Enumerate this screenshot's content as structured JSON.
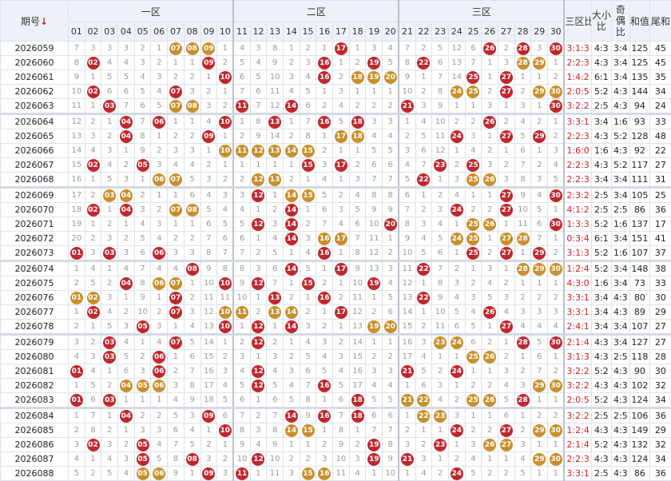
{
  "header": {
    "issue": "期号",
    "sort_icon": "↓",
    "zones": [
      "一区",
      "二区",
      "三区"
    ],
    "numbers": [
      "01",
      "02",
      "03",
      "04",
      "05",
      "06",
      "07",
      "08",
      "09",
      "10",
      "11",
      "12",
      "13",
      "14",
      "15",
      "16",
      "17",
      "18",
      "19",
      "20",
      "21",
      "22",
      "23",
      "24",
      "25",
      "26",
      "27",
      "28",
      "29",
      "30"
    ],
    "stats": [
      "三区比",
      "大小比",
      "奇偶比",
      "和值",
      "尾和"
    ]
  },
  "style": {
    "ball_color": "#c0272d",
    "consecutive_color": "#c8902c",
    "miss_color": "#9a9a9a",
    "ratio_color": "#d0202a",
    "header_bg": "#eef2f8"
  },
  "rows": [
    {
      "issue": "2026059",
      "cells": [
        "7",
        "3",
        "3",
        "3",
        "2",
        "1",
        "07",
        "08",
        "09",
        "1",
        "4",
        "3",
        "8",
        "1",
        "2",
        "1",
        "17",
        "1",
        "3",
        "4",
        "7",
        "2",
        "5",
        "12",
        "6",
        "26",
        "2",
        "28",
        "3",
        "30"
      ],
      "zone_ratio": "3:1:3",
      "big_small": "4:3",
      "odd_even": "3:4",
      "sum": 125,
      "tail_sum": 45
    },
    {
      "issue": "2026060",
      "cells": [
        "8",
        "02",
        "4",
        "4",
        "3",
        "2",
        "1",
        "1",
        "09",
        "2",
        "5",
        "4",
        "9",
        "2",
        "3",
        "16",
        "1",
        "2",
        "19",
        "5",
        "8",
        "22",
        "6",
        "13",
        "7",
        "1",
        "3",
        "28",
        "29",
        "1"
      ],
      "zone_ratio": "2:2:3",
      "big_small": "4:3",
      "odd_even": "3:4",
      "sum": 125,
      "tail_sum": 45
    },
    {
      "issue": "2026061",
      "cells": [
        "9",
        "1",
        "5",
        "5",
        "4",
        "3",
        "2",
        "2",
        "1",
        "10",
        "6",
        "5",
        "10",
        "3",
        "4",
        "16",
        "2",
        "18",
        "19",
        "20",
        "9",
        "1",
        "7",
        "14",
        "25",
        "1",
        "27",
        "1",
        "1",
        "2"
      ],
      "zone_ratio": "1:4:2",
      "big_small": "6:1",
      "odd_even": "3:4",
      "sum": 135,
      "tail_sum": 35
    },
    {
      "issue": "2026062",
      "cells": [
        "10",
        "02",
        "6",
        "6",
        "5",
        "4",
        "07",
        "3",
        "2",
        "1",
        "7",
        "6",
        "11",
        "4",
        "5",
        "1",
        "3",
        "1",
        "1",
        "1",
        "10",
        "2",
        "8",
        "24",
        "25",
        "2",
        "27",
        "2",
        "29",
        "30"
      ],
      "zone_ratio": "2:0:5",
      "big_small": "5:2",
      "odd_even": "4:3",
      "sum": 144,
      "tail_sum": 34
    },
    {
      "issue": "2026063",
      "cells": [
        "11",
        "1",
        "03",
        "7",
        "6",
        "5",
        "07",
        "08",
        "3",
        "2",
        "11",
        "7",
        "12",
        "14",
        "6",
        "2",
        "4",
        "2",
        "2",
        "2",
        "21",
        "3",
        "9",
        "1",
        "1",
        "3",
        "1",
        "3",
        "1",
        "30"
      ],
      "zone_ratio": "3:2:2",
      "big_small": "2:5",
      "odd_even": "4:3",
      "sum": 94,
      "tail_sum": 24
    },
    {
      "issue": "2026064",
      "cells": [
        "12",
        "2",
        "1",
        "04",
        "7",
        "06",
        "1",
        "1",
        "4",
        "10",
        "1",
        "8",
        "13",
        "1",
        "7",
        "16",
        "5",
        "18",
        "3",
        "3",
        "1",
        "4",
        "10",
        "2",
        "2",
        "26",
        "2",
        "4",
        "2",
        "1"
      ],
      "zone_ratio": "3:3:1",
      "big_small": "3:4",
      "odd_even": "1:6",
      "sum": 93,
      "tail_sum": 33
    },
    {
      "issue": "2026065",
      "cells": [
        "13",
        "3",
        "2",
        "04",
        "8",
        "1",
        "2",
        "2",
        "09",
        "1",
        "2",
        "9",
        "14",
        "2",
        "8",
        "1",
        "17",
        "18",
        "4",
        "4",
        "2",
        "5",
        "11",
        "24",
        "3",
        "1",
        "27",
        "5",
        "29",
        "2"
      ],
      "zone_ratio": "2:2:3",
      "big_small": "4:3",
      "odd_even": "5:2",
      "sum": 128,
      "tail_sum": 48
    },
    {
      "issue": "2026066",
      "cells": [
        "14",
        "4",
        "3",
        "1",
        "9",
        "2",
        "3",
        "3",
        "1",
        "10",
        "11",
        "12",
        "13",
        "14",
        "15",
        "2",
        "1",
        "1",
        "5",
        "5",
        "3",
        "6",
        "12",
        "1",
        "4",
        "2",
        "1",
        "6",
        "1",
        "3"
      ],
      "zone_ratio": "1:6:0",
      "big_small": "1:6",
      "odd_even": "4:3",
      "sum": 92,
      "tail_sum": 22
    },
    {
      "issue": "2026067",
      "cells": [
        "15",
        "02",
        "4",
        "2",
        "05",
        "3",
        "4",
        "4",
        "2",
        "1",
        "1",
        "1",
        "1",
        "1",
        "15",
        "3",
        "17",
        "2",
        "6",
        "6",
        "4",
        "7",
        "23",
        "2",
        "25",
        "3",
        "2",
        "7",
        "2",
        "4"
      ],
      "zone_ratio": "2:2:3",
      "big_small": "4:3",
      "odd_even": "5:2",
      "sum": 117,
      "tail_sum": 27
    },
    {
      "issue": "2026068",
      "cells": [
        "16",
        "1",
        "5",
        "3",
        "1",
        "06",
        "07",
        "5",
        "3",
        "2",
        "2",
        "12",
        "13",
        "2",
        "1",
        "4",
        "1",
        "3",
        "7",
        "7",
        "5",
        "22",
        "1",
        "3",
        "25",
        "26",
        "3",
        "8",
        "3",
        "5"
      ],
      "zone_ratio": "2:2:3",
      "big_small": "3:4",
      "odd_even": "3:4",
      "sum": 111,
      "tail_sum": 31
    },
    {
      "issue": "2026069",
      "cells": [
        "17",
        "2",
        "03",
        "04",
        "2",
        "1",
        "1",
        "6",
        "4",
        "3",
        "3",
        "12",
        "1",
        "14",
        "15",
        "5",
        "2",
        "4",
        "8",
        "8",
        "6",
        "1",
        "2",
        "4",
        "1",
        "1",
        "27",
        "9",
        "4",
        "30"
      ],
      "zone_ratio": "2:3:2",
      "big_small": "2:5",
      "odd_even": "3:4",
      "sum": 105,
      "tail_sum": 25
    },
    {
      "issue": "2026070",
      "cells": [
        "18",
        "02",
        "1",
        "04",
        "3",
        "2",
        "07",
        "08",
        "5",
        "4",
        "4",
        "1",
        "2",
        "14",
        "1",
        "6",
        "3",
        "5",
        "9",
        "9",
        "7",
        "2",
        "3",
        "24",
        "2",
        "2",
        "27",
        "10",
        "5",
        "1"
      ],
      "zone_ratio": "4:1:2",
      "big_small": "2:5",
      "odd_even": "2:5",
      "sum": 86,
      "tail_sum": 36
    },
    {
      "issue": "2026071",
      "cells": [
        "19",
        "1",
        "2",
        "1",
        "4",
        "3",
        "1",
        "1",
        "6",
        "5",
        "5",
        "12",
        "3",
        "14",
        "2",
        "7",
        "4",
        "6",
        "10",
        "20",
        "8",
        "3",
        "4",
        "1",
        "25",
        "26",
        "1",
        "11",
        "6",
        "30"
      ],
      "zone_ratio": "1:3:3",
      "big_small": "5:2",
      "odd_even": "1:6",
      "sum": 137,
      "tail_sum": 17
    },
    {
      "issue": "2026072",
      "cells": [
        "20",
        "2",
        "3",
        "2",
        "5",
        "4",
        "2",
        "2",
        "7",
        "6",
        "6",
        "1",
        "4",
        "14",
        "3",
        "16",
        "17",
        "7",
        "11",
        "1",
        "9",
        "4",
        "5",
        "24",
        "25",
        "1",
        "27",
        "28",
        "7",
        "1"
      ],
      "zone_ratio": "0:3:4",
      "big_small": "6:1",
      "odd_even": "3:4",
      "sum": 151,
      "tail_sum": 41
    },
    {
      "issue": "2026073",
      "cells": [
        "01",
        "3",
        "03",
        "3",
        "6",
        "06",
        "3",
        "3",
        "8",
        "7",
        "7",
        "2",
        "5",
        "1",
        "4",
        "16",
        "1",
        "8",
        "12",
        "2",
        "10",
        "5",
        "6",
        "1",
        "25",
        "2",
        "27",
        "1",
        "29",
        "2"
      ],
      "zone_ratio": "3:1:3",
      "big_small": "5:2",
      "odd_even": "1:6",
      "sum": 107,
      "tail_sum": 37
    },
    {
      "issue": "2026074",
      "cells": [
        "1",
        "4",
        "1",
        "4",
        "7",
        "4",
        "4",
        "08",
        "9",
        "8",
        "8",
        "3",
        "6",
        "14",
        "5",
        "1",
        "17",
        "9",
        "13",
        "3",
        "11",
        "22",
        "7",
        "2",
        "1",
        "3",
        "1",
        "28",
        "29",
        "30"
      ],
      "zone_ratio": "1:2:4",
      "big_small": "5:2",
      "odd_even": "3:4",
      "sum": 148,
      "tail_sum": 38
    },
    {
      "issue": "2026075",
      "cells": [
        "2",
        "5",
        "2",
        "04",
        "8",
        "06",
        "07",
        "1",
        "10",
        "10",
        "9",
        "12",
        "7",
        "1",
        "15",
        "2",
        "1",
        "10",
        "19",
        "4",
        "12",
        "1",
        "8",
        "3",
        "2",
        "4",
        "2",
        "1",
        "1",
        "1"
      ],
      "zone_ratio": "4:3:0",
      "big_small": "1:6",
      "odd_even": "3:4",
      "sum": 73,
      "tail_sum": 33
    },
    {
      "issue": "2026076",
      "cells": [
        "01",
        "02",
        "3",
        "1",
        "9",
        "1",
        "07",
        "2",
        "11",
        "11",
        "10",
        "1",
        "13",
        "2",
        "1",
        "16",
        "2",
        "11",
        "1",
        "5",
        "13",
        "22",
        "9",
        "4",
        "3",
        "5",
        "3",
        "2",
        "2",
        "2"
      ],
      "zone_ratio": "3:3:1",
      "big_small": "3:4",
      "odd_even": "4:3",
      "sum": 80,
      "tail_sum": 30
    },
    {
      "issue": "2026077",
      "cells": [
        "1",
        "02",
        "4",
        "2",
        "10",
        "2",
        "07",
        "3",
        "12",
        "10",
        "11",
        "2",
        "13",
        "14",
        "2",
        "1",
        "17",
        "12",
        "2",
        "6",
        "14",
        "1",
        "10",
        "5",
        "4",
        "26",
        "4",
        "3",
        "3",
        "3"
      ],
      "zone_ratio": "3:3:1",
      "big_small": "3:4",
      "odd_even": "4:3",
      "sum": 89,
      "tail_sum": 29
    },
    {
      "issue": "2026078",
      "cells": [
        "2",
        "1",
        "5",
        "3",
        "05",
        "3",
        "1",
        "4",
        "13",
        "10",
        "1",
        "12",
        "1",
        "14",
        "3",
        "2",
        "1",
        "13",
        "19",
        "20",
        "15",
        "2",
        "11",
        "6",
        "5",
        "1",
        "27",
        "4",
        "4",
        "4"
      ],
      "zone_ratio": "2:4:1",
      "big_small": "3:4",
      "odd_even": "3:4",
      "sum": 107,
      "tail_sum": 27
    },
    {
      "issue": "2026079",
      "cells": [
        "3",
        "2",
        "03",
        "4",
        "1",
        "4",
        "07",
        "5",
        "14",
        "1",
        "2",
        "12",
        "2",
        "1",
        "4",
        "3",
        "2",
        "14",
        "1",
        "1",
        "16",
        "3",
        "23",
        "24",
        "6",
        "2",
        "1",
        "28",
        "5",
        "30"
      ],
      "zone_ratio": "2:1:4",
      "big_small": "4:3",
      "odd_even": "3:4",
      "sum": 127,
      "tail_sum": 27
    },
    {
      "issue": "2026080",
      "cells": [
        "4",
        "3",
        "03",
        "5",
        "2",
        "06",
        "1",
        "6",
        "15",
        "2",
        "3",
        "1",
        "3",
        "2",
        "5",
        "4",
        "3",
        "15",
        "2",
        "2",
        "17",
        "4",
        "1",
        "1",
        "25",
        "26",
        "2",
        "1",
        "6",
        "1"
      ],
      "zone_ratio": "3:1:3",
      "big_small": "4:3",
      "odd_even": "2:5",
      "sum": 118,
      "tail_sum": 28
    },
    {
      "issue": "2026081",
      "cells": [
        "01",
        "4",
        "1",
        "6",
        "3",
        "06",
        "2",
        "7",
        "16",
        "3",
        "4",
        "12",
        "4",
        "3",
        "6",
        "5",
        "4",
        "16",
        "3",
        "3",
        "21",
        "5",
        "2",
        "24",
        "1",
        "1",
        "3",
        "2",
        "7",
        "2"
      ],
      "zone_ratio": "3:2:2",
      "big_small": "5:2",
      "odd_even": "4:3",
      "sum": 90,
      "tail_sum": 30
    },
    {
      "issue": "2026082",
      "cells": [
        "1",
        "5",
        "2",
        "04",
        "05",
        "06",
        "3",
        "8",
        "17",
        "4",
        "5",
        "12",
        "5",
        "4",
        "7",
        "16",
        "5",
        "17",
        "4",
        "4",
        "1",
        "6",
        "3",
        "1",
        "2",
        "2",
        "4",
        "3",
        "29",
        "30"
      ],
      "zone_ratio": "3:2:2",
      "big_small": "4:3",
      "odd_even": "4:3",
      "sum": 102,
      "tail_sum": 32
    },
    {
      "issue": "2026083",
      "cells": [
        "01",
        "6",
        "03",
        "1",
        "1",
        "1",
        "4",
        "9",
        "18",
        "5",
        "6",
        "1",
        "6",
        "5",
        "8",
        "1",
        "6",
        "18",
        "5",
        "5",
        "21",
        "22",
        "4",
        "2",
        "25",
        "26",
        "5",
        "28",
        "1",
        "1"
      ],
      "zone_ratio": "2:0:5",
      "big_small": "5:2",
      "odd_even": "4:3",
      "sum": 124,
      "tail_sum": 34
    },
    {
      "issue": "2026084",
      "cells": [
        "1",
        "7",
        "1",
        "04",
        "2",
        "2",
        "5",
        "3",
        "09",
        "6",
        "7",
        "2",
        "7",
        "14",
        "9",
        "16",
        "7",
        "18",
        "6",
        "6",
        "1",
        "22",
        "23",
        "3",
        "1",
        "1",
        "6",
        "1",
        "2",
        "2"
      ],
      "zone_ratio": "3:2:2",
      "big_small": "2:5",
      "odd_even": "2:5",
      "sum": 106,
      "tail_sum": 36
    },
    {
      "issue": "2026085",
      "cells": [
        "2",
        "8",
        "2",
        "1",
        "3",
        "3",
        "6",
        "4",
        "1",
        "10",
        "8",
        "3",
        "8",
        "14",
        "15",
        "1",
        "8",
        "1",
        "7",
        "7",
        "2",
        "1",
        "1",
        "24",
        "2",
        "2",
        "27",
        "2",
        "29",
        "30"
      ],
      "zone_ratio": "1:2:4",
      "big_small": "4:3",
      "odd_even": "4:3",
      "sum": 149,
      "tail_sum": 29
    },
    {
      "issue": "2026086",
      "cells": [
        "3",
        "02",
        "3",
        "2",
        "05",
        "4",
        "7",
        "5",
        "2",
        "1",
        "9",
        "4",
        "9",
        "1",
        "1",
        "2",
        "9",
        "2",
        "19",
        "8",
        "3",
        "2",
        "23",
        "1",
        "3",
        "26",
        "27",
        "3",
        "1",
        "1"
      ],
      "zone_ratio": "2:1:4",
      "big_small": "5:2",
      "odd_even": "4:3",
      "sum": 132,
      "tail_sum": 32
    },
    {
      "issue": "2026087",
      "cells": [
        "4",
        "1",
        "4",
        "3",
        "05",
        "5",
        "8",
        "08",
        "3",
        "2",
        "10",
        "12",
        "10",
        "2",
        "2",
        "3",
        "10",
        "3",
        "19",
        "9",
        "21",
        "3",
        "1",
        "2",
        "4",
        "1",
        "1",
        "4",
        "29",
        "30"
      ],
      "zone_ratio": "2:2:3",
      "big_small": "4:3",
      "odd_even": "4:3",
      "sum": 124,
      "tail_sum": 34
    },
    {
      "issue": "2026088",
      "cells": [
        "5",
        "2",
        "5",
        "4",
        "05",
        "06",
        "9",
        "1",
        "09",
        "3",
        "11",
        "1",
        "11",
        "3",
        "15",
        "16",
        "11",
        "4",
        "1",
        "10",
        "1",
        "4",
        "2",
        "24",
        "5",
        "2",
        "2",
        "5",
        "1",
        "1"
      ],
      "zone_ratio": "3:3:1",
      "big_small": "2:5",
      "odd_even": "4:3",
      "sum": 86,
      "tail_sum": 36
    }
  ]
}
